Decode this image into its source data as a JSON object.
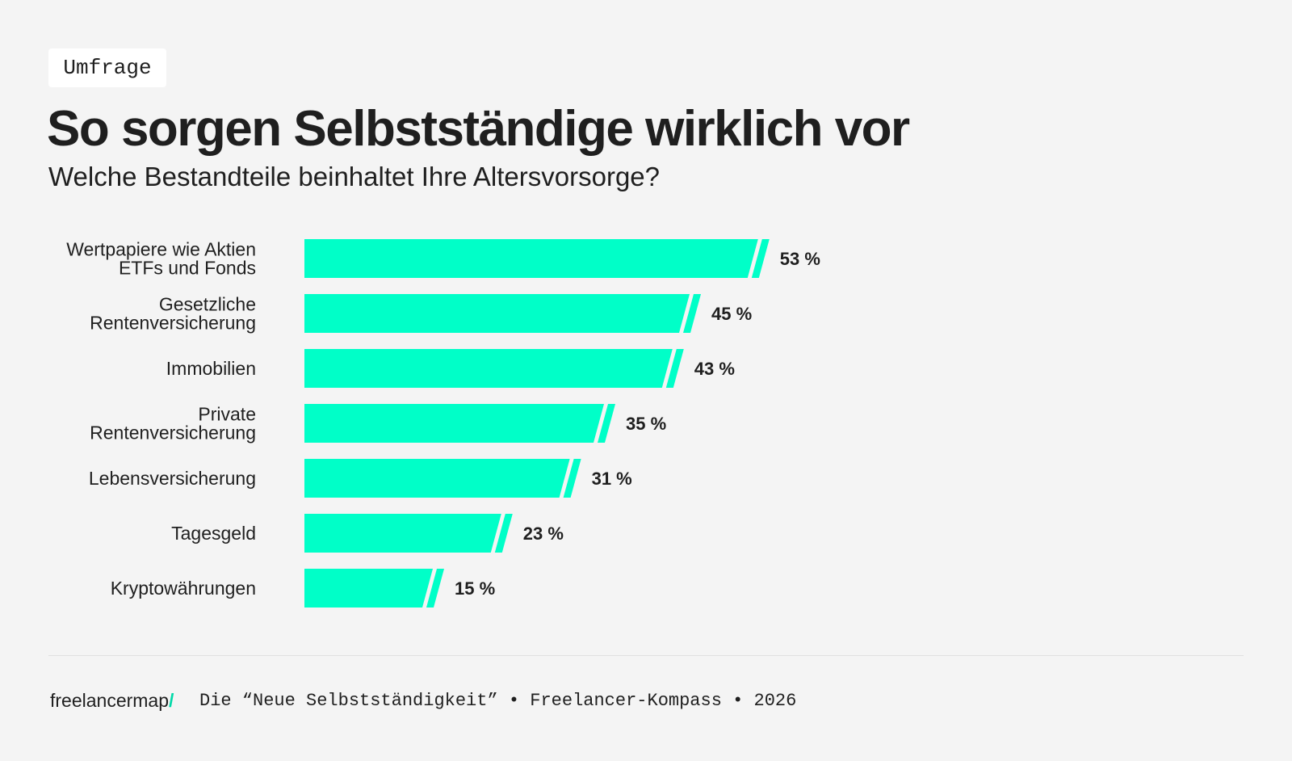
{
  "tag": "Umfrage",
  "title": "So sorgen Selbstständige wirklich vor",
  "subtitle": "Welche Bestandteile beinhaltet Ihre Altersvorsorge?",
  "colors": {
    "bar": "#00ffc8",
    "text": "#1f1f1f",
    "background": "#f4f4f4"
  },
  "chart_data": {
    "type": "bar",
    "orientation": "horizontal",
    "categories": [
      [
        "Wertpapiere wie Aktien",
        "ETFs und Fonds"
      ],
      [
        "Gesetzliche",
        "Rentenversicherung"
      ],
      [
        "Immobilien"
      ],
      [
        "Private",
        "Rentenversicherung"
      ],
      [
        "Lebensversicherung"
      ],
      [
        "Tagesgeld"
      ],
      [
        "Kryptowährungen"
      ]
    ],
    "values": [
      53,
      45,
      43,
      35,
      31,
      23,
      15
    ],
    "value_labels": [
      "53 %",
      "45 %",
      "43 %",
      "35 %",
      "31 %",
      "23 %",
      "15 %"
    ],
    "unit": "%",
    "grid": false,
    "legend": "none"
  },
  "footer": {
    "logo_text": "freelancermap",
    "logo_slash": "/",
    "source": "Die “Neue Selbstständigkeit” • Freelancer-Kompass • 2026"
  }
}
